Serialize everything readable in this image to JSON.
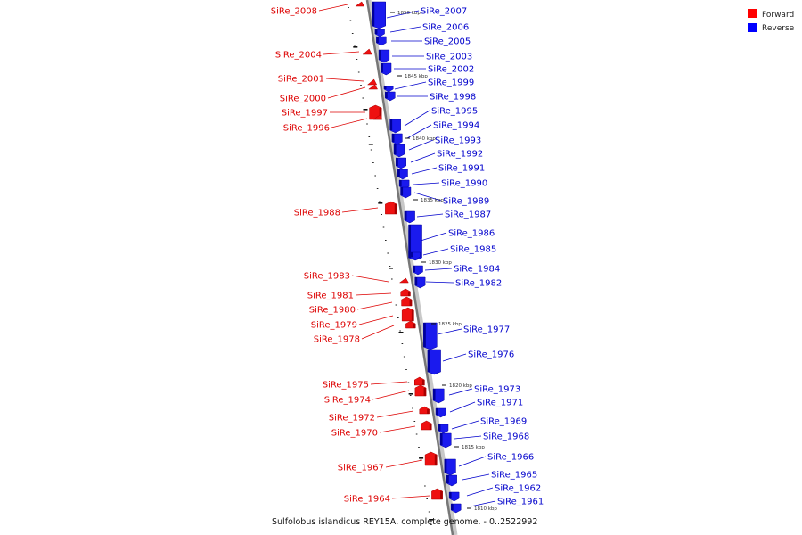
{
  "caption": "Sulfolobus islandicus REY15A, complete genome. - 0..2522992",
  "legend": [
    {
      "label": "Forward",
      "color": "#ff0000"
    },
    {
      "label": "Reverse",
      "color": "#0000ff"
    }
  ],
  "ticks": [
    "1850 kbp",
    "1845 kbp",
    "1840 kbp",
    "1835 kbp",
    "1830 kbp",
    "1825 kbp",
    "1820 kbp",
    "1815 kbp",
    "1810 kbp"
  ],
  "forward_genes": [
    "SiRe_2008",
    "SiRe_2004",
    "SiRe_2001",
    "SiRe_2000",
    "SiRe_1997",
    "SiRe_1996",
    "SiRe_1988",
    "SiRe_1983",
    "SiRe_1981",
    "SiRe_1980",
    "SiRe_1979",
    "SiRe_1978",
    "SiRe_1975",
    "SiRe_1974",
    "SiRe_1972",
    "SiRe_1970",
    "SiRe_1967",
    "SiRe_1964"
  ],
  "reverse_genes": [
    "SiRe_2007",
    "SiRe_2006",
    "SiRe_2005",
    "SiRe_2003",
    "SiRe_2002",
    "SiRe_1999",
    "SiRe_1998",
    "SiRe_1995",
    "SiRe_1994",
    "SiRe_1993",
    "SiRe_1992",
    "SiRe_1991",
    "SiRe_1990",
    "SiRe_1989",
    "SiRe_1987",
    "SiRe_1986",
    "SiRe_1985",
    "SiRe_1984",
    "SiRe_1982",
    "SiRe_1977",
    "SiRe_1976",
    "SiRe_1973",
    "SiRe_1971",
    "SiRe_1969",
    "SiRe_1968",
    "SiRe_1966",
    "SiRe_1965",
    "SiRe_1962",
    "SiRe_1961"
  ]
}
